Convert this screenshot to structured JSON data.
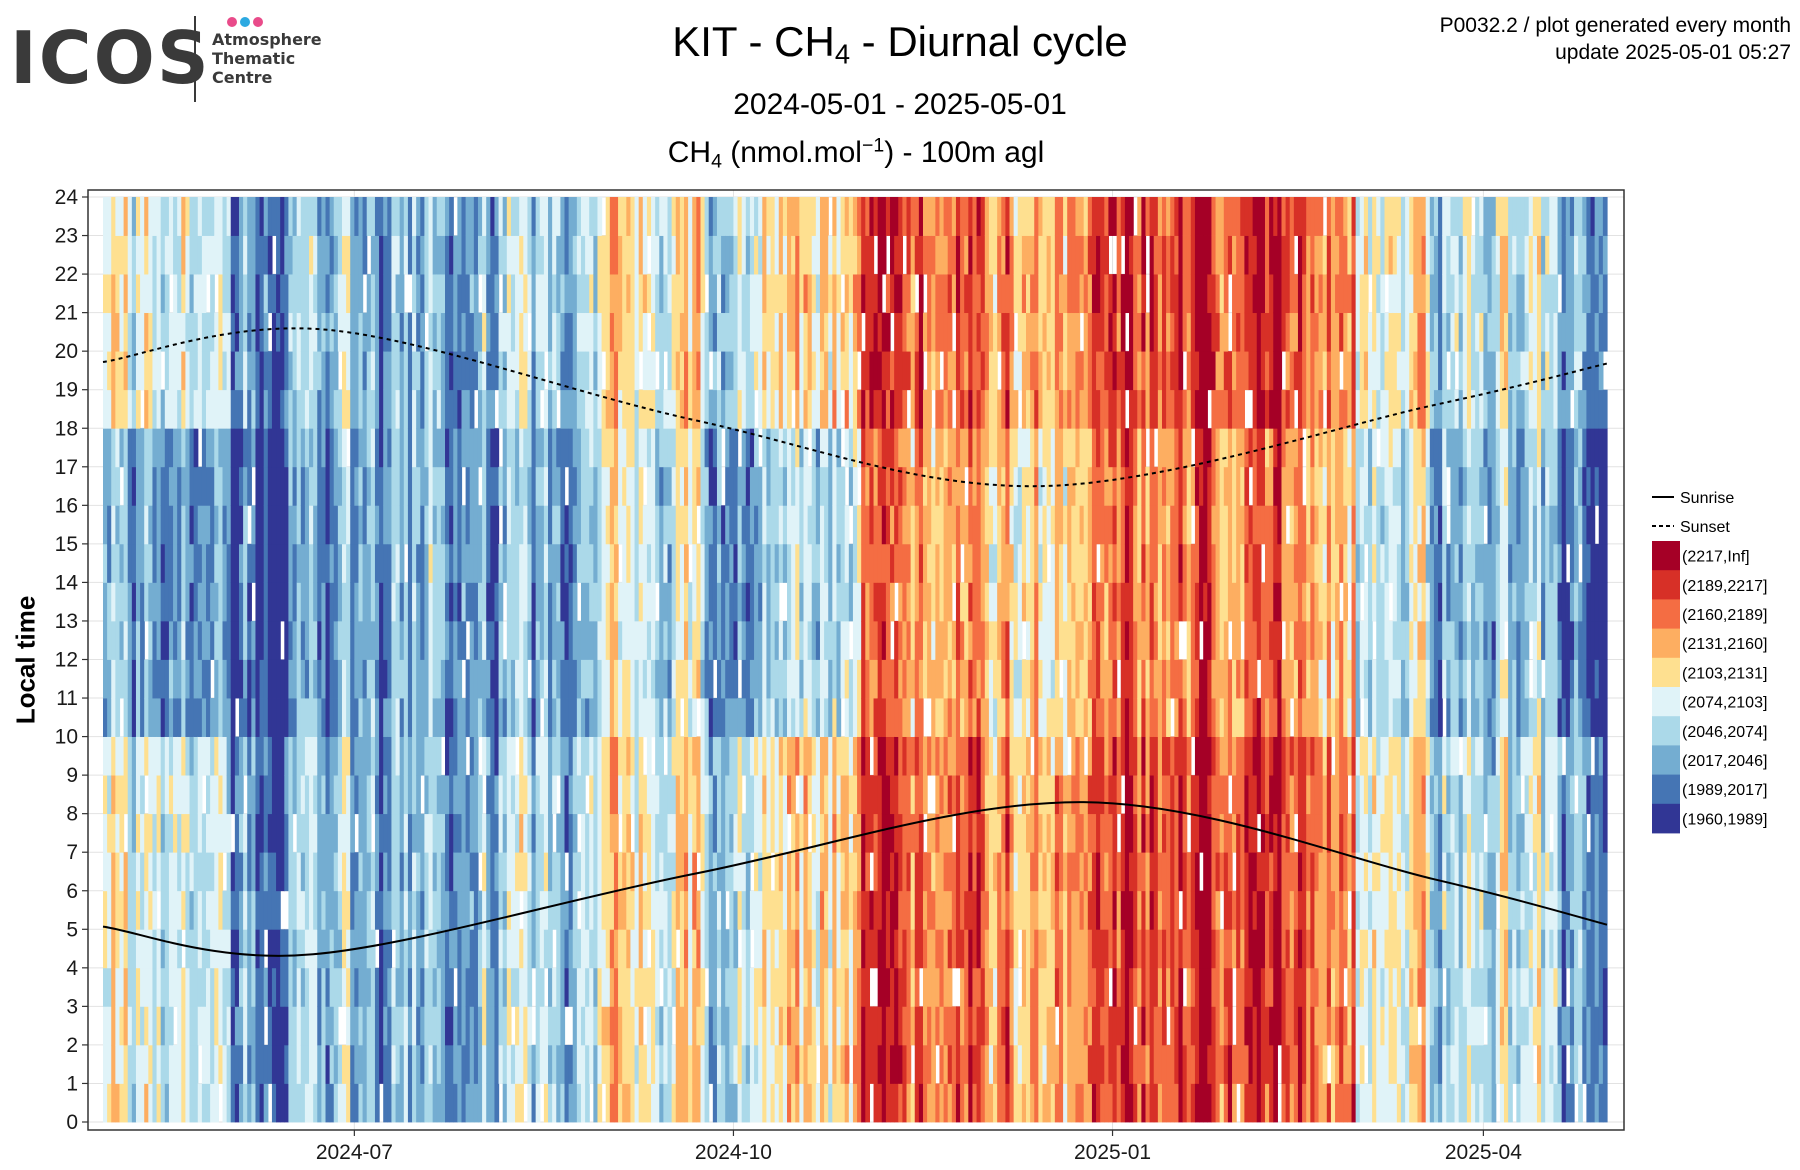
{
  "logo": {
    "wordmark": "ICOS",
    "sub_lines": [
      "Atmosphere",
      "Thematic",
      "Centre"
    ],
    "dot_colors": [
      "#e94b8a",
      "#2ca9e1",
      "#e94b8a"
    ]
  },
  "header": {
    "title_pre": "KIT - CH",
    "title_sub": "4",
    "title_post": " - Diurnal cycle",
    "subtitle": "2024-05-01 - 2025-05-01",
    "var_pre": "CH",
    "var_sub": "4",
    "var_mid": " (nmol.mol",
    "var_sup": "−1",
    "var_post": ") - 100m agl"
  },
  "meta": {
    "line1": "P0032.2 / plot generated every month",
    "line2": "update  2025-05-01 05:27"
  },
  "axis": {
    "ylabel": "Local time"
  },
  "chart_data": {
    "type": "heatmap",
    "x_range": [
      "2024-05-01",
      "2025-05-01"
    ],
    "x_ticks": [
      "2024-07",
      "2024-10",
      "2025-01",
      "2025-04"
    ],
    "y_range": [
      0,
      24
    ],
    "y_ticks": [
      "0",
      "1",
      "2",
      "3",
      "4",
      "5",
      "6",
      "7",
      "8",
      "9",
      "10",
      "11",
      "12",
      "13",
      "14",
      "15",
      "16",
      "17",
      "18",
      "19",
      "20",
      "21",
      "22",
      "23",
      "24"
    ],
    "ylabel": "Local time",
    "unit": "nmol.mol-1",
    "grid": true,
    "legend_position": "right",
    "bins": [
      {
        "label": "(2217,Inf]",
        "color": "#a50026"
      },
      {
        "label": "(2189,2217]",
        "color": "#d73027"
      },
      {
        "label": "(2160,2189]",
        "color": "#f46d43"
      },
      {
        "label": "(2131,2160]",
        "color": "#fdae61"
      },
      {
        "label": "(2103,2131]",
        "color": "#fee090"
      },
      {
        "label": "(2074,2103]",
        "color": "#e0f3f8"
      },
      {
        "label": "(2046,2074]",
        "color": "#abd9e9"
      },
      {
        "label": "(2017,2046]",
        "color": "#74add1"
      },
      {
        "label": "(1989,2017]",
        "color": "#4575b4"
      },
      {
        "label": "(1960,1989]",
        "color": "#313695"
      }
    ],
    "monthly_mean_bin_by_hour_band": {
      "months": [
        "2024-05",
        "2024-06",
        "2024-07",
        "2024-08",
        "2024-09",
        "2024-10",
        "2024-11",
        "2024-12",
        "2025-01",
        "2025-02",
        "2025-03",
        "2025-04"
      ],
      "bin_night": [
        5,
        7,
        7,
        6,
        5,
        4,
        2,
        3,
        1,
        2,
        5,
        6
      ],
      "bin_day": [
        7,
        8,
        7,
        7,
        6,
        6,
        3,
        4,
        2,
        3,
        6,
        7
      ]
    },
    "lines": [
      {
        "name": "Sunrise",
        "style": "solid",
        "points": [
          [
            "2024-05-01",
            5.07
          ],
          [
            "2024-06-21",
            4.35
          ],
          [
            "2024-09-22",
            6.45
          ],
          [
            "2024-12-25",
            8.3
          ],
          [
            "2025-03-20",
            6.3
          ],
          [
            "2025-05-01",
            5.12
          ]
        ]
      },
      {
        "name": "Sunset",
        "style": "dashed",
        "points": [
          [
            "2024-05-01",
            19.72
          ],
          [
            "2024-06-25",
            20.55
          ],
          [
            "2024-09-22",
            18.2
          ],
          [
            "2024-12-15",
            16.5
          ],
          [
            "2025-03-20",
            18.6
          ],
          [
            "2025-05-01",
            19.68
          ]
        ]
      }
    ],
    "legend": {
      "line_entries": [
        "Sunrise",
        "Sunset"
      ]
    }
  }
}
